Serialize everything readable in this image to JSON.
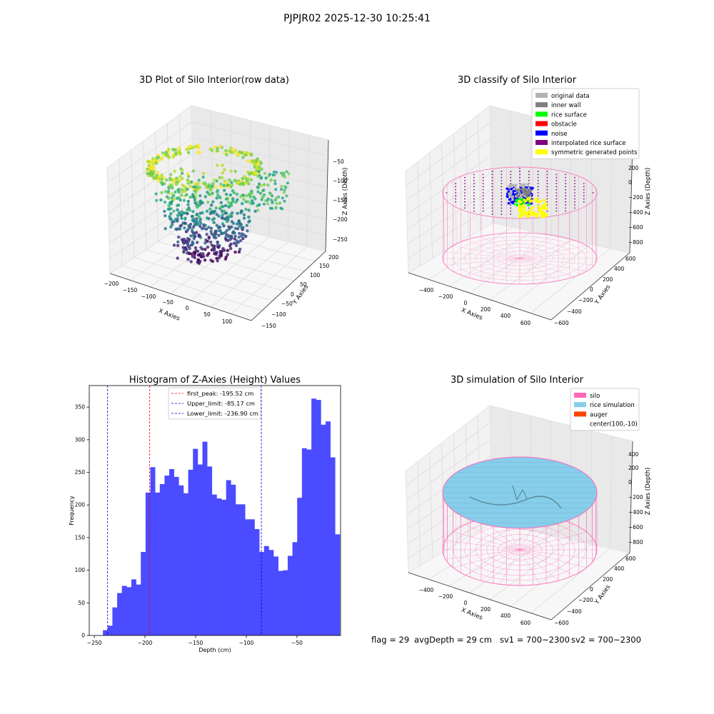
{
  "figure": {
    "suptitle": "PJPJR02 2025-12-30 10:25:41",
    "status": {
      "flag": "flag = 29",
      "avg_depth": "avgDepth = 29 cm",
      "sv1": "sv1 = 700~2300",
      "sv2": "sv2 = 700~2300"
    },
    "colors": {
      "histogram_bar": "#4b4bff",
      "first_peak_line": "#ff0000",
      "limit_line": "#0000cc",
      "silo": "#ff69b4",
      "rice_simulation": "#87ceeb",
      "auger": "#ff4500",
      "original": "#b4b4b4",
      "inner_wall": "#808080",
      "rice_surface": "#00ff00",
      "obstacle": "#ff0000",
      "noise": "#0000ff",
      "interpolated": "#800080",
      "symmetric": "#ffff00"
    }
  },
  "chart_data": [
    {
      "type": "scatter3d",
      "title": "3D Plot of Silo Interior(row data)",
      "xlabel": "X Axies",
      "ylabel": "Y Axies",
      "zlabel": "Z Axies (Depth)",
      "xticks": [
        "−200",
        "−150",
        "−100",
        "−50",
        "0",
        "50",
        "100"
      ],
      "yticks": [
        "200",
        "150",
        "100",
        "50",
        "0",
        "−50",
        "−100",
        "−150"
      ],
      "zticks": [
        "−50",
        "−100",
        "−150",
        "−200",
        "−250"
      ],
      "xlim": [
        -210,
        120
      ],
      "ylim": [
        -160,
        220
      ],
      "zlim": [
        -260,
        -20
      ],
      "colormap": "viridis"
    },
    {
      "type": "scatter3d",
      "title": "3D classify of Silo Interior",
      "xlabel": "X Axies",
      "ylabel": "Y Axies",
      "zlabel": "Z Axies (Depth)",
      "xticks": [
        "−400",
        "−200",
        "0",
        "200",
        "400",
        "600"
      ],
      "yticks": [
        "600",
        "400",
        "200",
        "0",
        "−200",
        "−400",
        "−600"
      ],
      "zticks": [
        "400",
        "200",
        "0",
        "−200",
        "−400",
        "−600",
        "−800"
      ],
      "legend": [
        "original data",
        "inner wall",
        "rice surface",
        "obstacle",
        "noise",
        "interpolated rice surface",
        "symmetric generated points"
      ],
      "legend_position": "upper-right"
    },
    {
      "type": "bar",
      "title": "Histogram of Z-Axies (Height) Values",
      "xlabel": "Depth (cm)",
      "ylabel": "Frequency",
      "xlim": [
        -255,
        -7
      ],
      "ylim": [
        0,
        383
      ],
      "xticks": [
        -250,
        -200,
        -150,
        -100,
        -50
      ],
      "yticks": [
        0,
        50,
        100,
        150,
        200,
        250,
        300,
        350
      ],
      "bin_start": -241.5,
      "bin_width": 4.675,
      "values": [
        8,
        15,
        43,
        65,
        76,
        74,
        86,
        78,
        128,
        219,
        258,
        219,
        232,
        245,
        255,
        243,
        230,
        218,
        254,
        286,
        262,
        297,
        259,
        216,
        210,
        208,
        238,
        231,
        201,
        201,
        178,
        178,
        163,
        128,
        137,
        131,
        121,
        99,
        100,
        122,
        143,
        211,
        287,
        285,
        363,
        361,
        323,
        328,
        273,
        155
      ],
      "vlines": [
        {
          "label": "first_peak: -195.52 cm",
          "x": -195.52,
          "color": "red"
        },
        {
          "label": "Upper_limit: -85.17 cm",
          "x": -85.17,
          "color": "blue"
        },
        {
          "label": "Lower_limit: -236.90 cm",
          "x": -236.9,
          "color": "blue"
        }
      ],
      "legend_position": "upper-center"
    },
    {
      "type": "surface3d",
      "title": "3D simulation of Silo Interior",
      "xlabel": "X Axies",
      "ylabel": "Y Axies",
      "zlabel": "Z Axies (Depth)",
      "xticks": [
        "−400",
        "−200",
        "0",
        "200",
        "400",
        "600"
      ],
      "yticks": [
        "600",
        "400",
        "200",
        "0",
        "−200",
        "−400",
        "−600"
      ],
      "zticks": [
        "400",
        "200",
        "0",
        "−200",
        "−400",
        "−600",
        "−800"
      ],
      "legend": [
        "silo",
        "rice simulation",
        "auger",
        "center(100,-10)"
      ],
      "legend_position": "upper-right"
    }
  ]
}
